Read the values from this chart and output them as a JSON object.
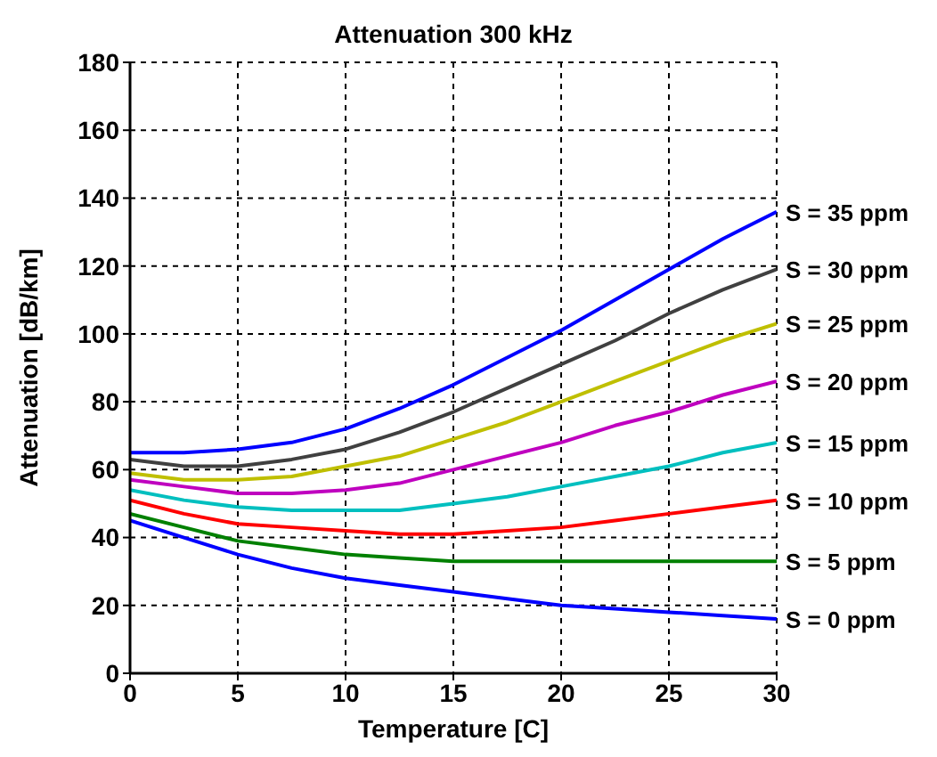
{
  "chart_data": {
    "type": "line",
    "title": "Attenuation 300 kHz",
    "xlabel": "Temperature [C]",
    "ylabel": "Attenuation [dB/km]",
    "x": [
      0,
      2.5,
      5,
      7.5,
      10,
      12.5,
      15,
      17.5,
      20,
      22.5,
      25,
      27.5,
      30
    ],
    "xlim": [
      0,
      30
    ],
    "xticks": [
      0,
      5,
      10,
      15,
      20,
      25,
      30
    ],
    "ylim": [
      0,
      180
    ],
    "yticks": [
      0,
      20,
      40,
      60,
      80,
      100,
      120,
      140,
      160,
      180
    ],
    "grid": true,
    "legend": false,
    "marker": "none",
    "line_style": "solid",
    "series": [
      {
        "name": "S = 35 ppm",
        "color": "#0000ff",
        "values": [
          65,
          65,
          66,
          68,
          72,
          78,
          85,
          93,
          101,
          110,
          119,
          128,
          136
        ]
      },
      {
        "name": "S = 30 ppm",
        "color": "#404040",
        "values": [
          63,
          61,
          61,
          63,
          66,
          71,
          77,
          84,
          91,
          98,
          106,
          113,
          119
        ]
      },
      {
        "name": "S = 25 ppm",
        "color": "#bfbf00",
        "values": [
          59,
          57,
          57,
          58,
          61,
          64,
          69,
          74,
          80,
          86,
          92,
          98,
          103
        ]
      },
      {
        "name": "S = 20 ppm",
        "color": "#bf00bf",
        "values": [
          57,
          55,
          53,
          53,
          54,
          56,
          60,
          64,
          68,
          73,
          77,
          82,
          86
        ]
      },
      {
        "name": "S = 15 ppm",
        "color": "#00bfbf",
        "values": [
          54,
          51,
          49,
          48,
          48,
          48,
          50,
          52,
          55,
          58,
          61,
          65,
          68
        ]
      },
      {
        "name": "S = 10 ppm",
        "color": "#ff0000",
        "values": [
          51,
          47,
          44,
          43,
          42,
          41,
          41,
          42,
          43,
          45,
          47,
          49,
          51
        ]
      },
      {
        "name": "S = 5 ppm",
        "color": "#008000",
        "values": [
          47,
          43,
          39,
          37,
          35,
          34,
          33,
          33,
          33,
          33,
          33,
          33,
          33
        ]
      },
      {
        "name": "S = 0 ppm",
        "color": "#0000ff",
        "values": [
          45,
          40,
          35,
          31,
          28,
          26,
          24,
          22,
          20,
          19,
          18,
          17,
          16
        ]
      }
    ]
  }
}
